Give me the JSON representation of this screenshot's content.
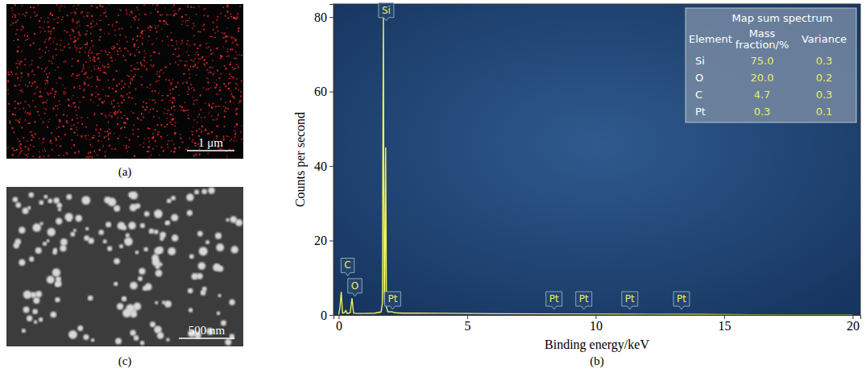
{
  "chart_data": {
    "type": "line",
    "panel_label": "(b)",
    "xlabel": "Binding energy/keV",
    "ylabel": "Counts per second",
    "color": "#f0f05a",
    "x": [
      0,
      0.05,
      0.1,
      0.15,
      0.22,
      0.28,
      0.33,
      0.45,
      0.52,
      0.58,
      0.7,
      1.0,
      1.4,
      1.65,
      1.7,
      1.74,
      1.77,
      1.79,
      1.83,
      1.86,
      1.92,
      2.05,
      2.2,
      2.5,
      3,
      4,
      5,
      6,
      8,
      10,
      12,
      14,
      15,
      16,
      17,
      18,
      20
    ],
    "values": [
      0,
      2,
      6.2,
      0.5,
      0.6,
      1.2,
      0.4,
      0.6,
      4.5,
      0.5,
      0.4,
      0.4,
      0.5,
      0.8,
      3,
      82,
      6,
      3,
      45,
      2,
      0.8,
      0.9,
      0.6,
      0.5,
      0.5,
      0.45,
      0.4,
      0.35,
      0.3,
      0.25,
      0.2,
      0.15,
      0.1,
      0.05,
      0,
      0,
      0
    ],
    "xlim": [
      -0.2,
      20.3
    ],
    "xticks": [
      0,
      5,
      10,
      15,
      20
    ],
    "ylim": [
      0,
      83.5
    ],
    "yticks": [
      0,
      20,
      40,
      60,
      80
    ],
    "annotations": [
      {
        "text": "C",
        "x": 0.35,
        "y": 10.5
      },
      {
        "text": "O",
        "x": 0.63,
        "y": 5
      },
      {
        "text": "Si",
        "x": 1.85,
        "y": 79
      },
      {
        "text": "Pt",
        "x": 2.1,
        "y": 1.5
      },
      {
        "text": "Pt",
        "x": 8.38,
        "y": 1.5
      },
      {
        "text": "Pt",
        "x": 9.54,
        "y": 1.5
      },
      {
        "text": "Pt",
        "x": 11.33,
        "y": 1.5
      },
      {
        "text": "Pt",
        "x": 13.34,
        "y": 1.5
      }
    ],
    "table": {
      "title": "Map sum spectrum",
      "columns": [
        "Element",
        "Mass fraction/%",
        "Variance"
      ],
      "rows": [
        [
          "Si",
          "75.0",
          "0.3"
        ],
        [
          "O",
          "20.0",
          "0.2"
        ],
        [
          "C",
          "4.7",
          "0.3"
        ],
        [
          "Pt",
          "0.3",
          "0.1"
        ]
      ]
    }
  },
  "images": [
    {
      "label": "(a)",
      "scale_bar": "1 μm"
    },
    {
      "label": "(c)",
      "scale_bar": "500 nm"
    }
  ]
}
